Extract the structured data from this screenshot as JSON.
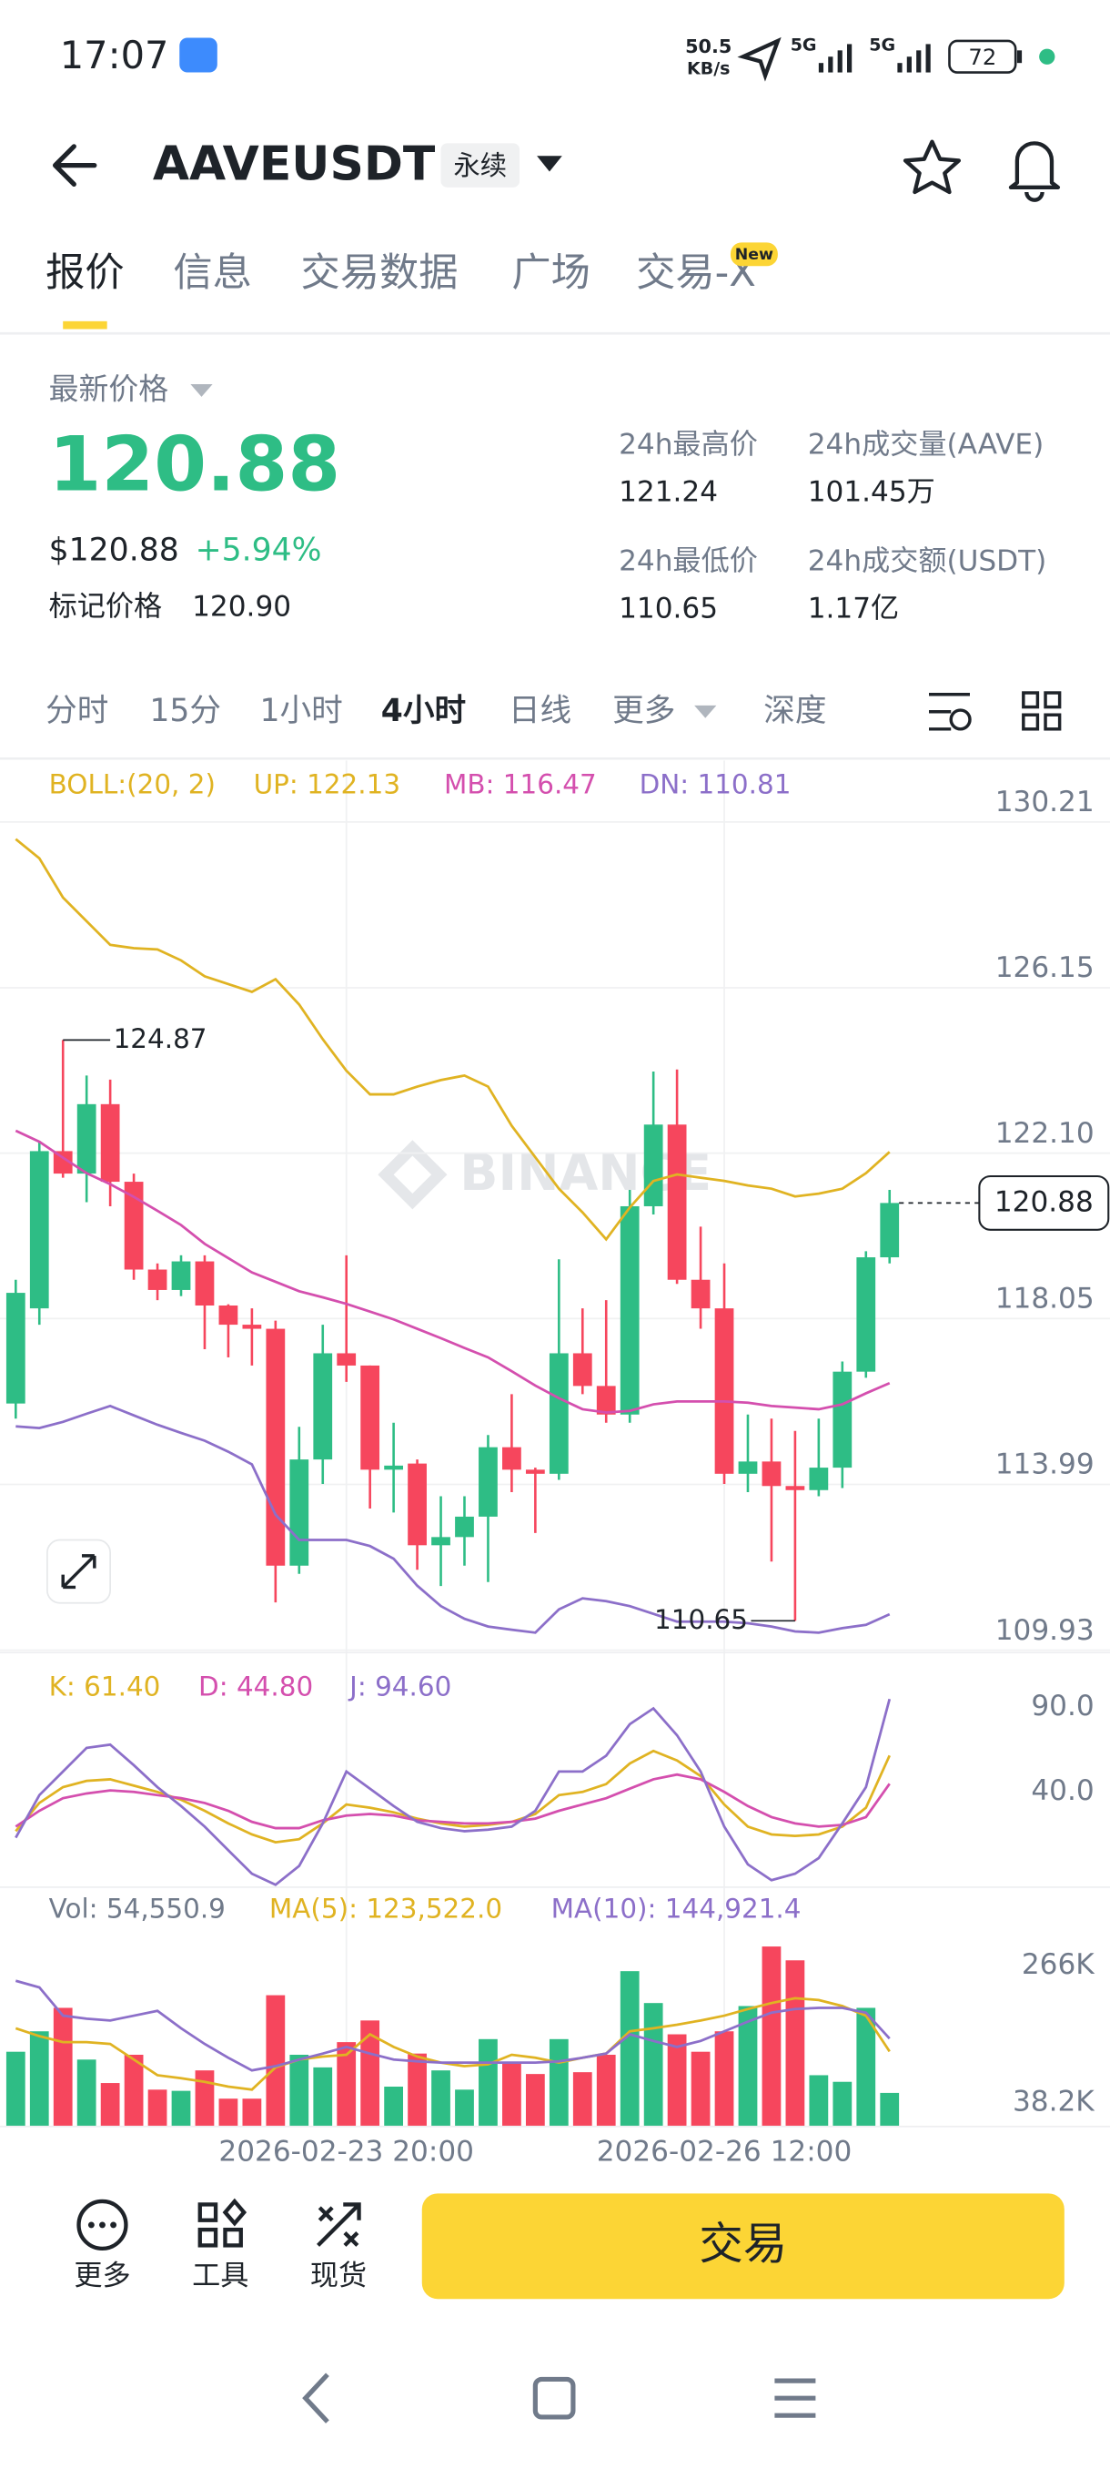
{
  "status_bar": {
    "time": "17:07",
    "net_speed": "50.5",
    "net_unit": "KB/s",
    "signal_1": "5G",
    "signal_2": "5G",
    "battery": "72"
  },
  "header": {
    "symbol": "AAVEUSDT",
    "tag": "永续"
  },
  "tabs": {
    "items": [
      "报价",
      "信息",
      "交易数据",
      "广场",
      "交易-X"
    ],
    "badge": "New"
  },
  "ticker": {
    "label": "最新价格",
    "price": "120.88",
    "usd_price": "$120.88",
    "change": "+5.94%",
    "mark_label": "标记价格",
    "mark_price": "120.90",
    "stats": [
      {
        "label": "24h最高价",
        "value": "121.24"
      },
      {
        "label": "24h成交量(AAVE)",
        "value": "101.45万"
      },
      {
        "label": "24h最低价",
        "value": "110.65"
      },
      {
        "label": "24h成交额(USDT)",
        "value": "1.17亿"
      }
    ]
  },
  "intervals": [
    "分时",
    "15分",
    "1小时",
    "4小时",
    "日线",
    "更多",
    "深度"
  ],
  "watermark": "BINANCE",
  "chart_data": [
    {
      "type": "candlestick",
      "legend": [
        {
          "text": "BOLL:(20, 2)",
          "color": "#e0b322"
        },
        {
          "text": "UP: 122.13",
          "color": "#e0b322"
        },
        {
          "text": "MB: 116.47",
          "color": "#d44fae"
        },
        {
          "text": "DN: 110.81",
          "color": "#8c6fc9"
        }
      ],
      "up_color": "#2ebd85",
      "down_color": "#f6465d",
      "open": [
        115.97,
        118.3,
        122.15,
        121.6,
        123.3,
        121.4,
        119.25,
        118.75,
        119.45,
        118.37,
        117.9,
        117.8,
        112.0,
        114.6,
        117.2,
        116.9,
        114.35,
        114.5,
        112.5,
        112.7,
        113.2,
        114.9,
        114.35,
        114.25,
        117.2,
        116.4,
        115.7,
        120.8,
        122.8,
        119.0,
        118.3,
        114.25,
        114.55,
        113.95,
        113.85,
        114.4,
        116.75,
        119.55
      ],
      "high": [
        119.0,
        122.4,
        124.87,
        124.0,
        123.9,
        121.6,
        119.4,
        119.6,
        119.6,
        118.4,
        118.3,
        118.0,
        115.4,
        117.9,
        119.6,
        116.9,
        115.5,
        114.6,
        113.7,
        113.7,
        115.2,
        116.2,
        114.4,
        119.5,
        118.3,
        118.5,
        121.2,
        124.1,
        124.15,
        120.3,
        119.4,
        115.7,
        115.6,
        115.3,
        115.6,
        117.0,
        119.7,
        121.2
      ],
      "low": [
        115.6,
        117.9,
        121.5,
        120.9,
        120.8,
        119.0,
        118.5,
        118.6,
        117.3,
        117.1,
        116.9,
        111.1,
        111.8,
        114.0,
        116.5,
        113.4,
        113.3,
        111.9,
        111.5,
        112.0,
        111.6,
        113.8,
        112.8,
        114.1,
        116.2,
        115.5,
        115.5,
        120.6,
        118.9,
        117.8,
        114.0,
        113.8,
        112.1,
        110.65,
        113.7,
        113.9,
        116.6,
        119.4
      ],
      "close": [
        118.68,
        122.15,
        121.6,
        123.3,
        121.4,
        119.25,
        118.75,
        119.45,
        118.37,
        117.9,
        117.8,
        112.0,
        114.6,
        117.2,
        116.9,
        114.35,
        114.45,
        112.5,
        112.7,
        113.2,
        114.9,
        114.35,
        114.25,
        117.2,
        116.4,
        115.7,
        120.8,
        122.8,
        119.0,
        118.3,
        114.25,
        114.55,
        113.95,
        113.85,
        114.4,
        116.75,
        119.55,
        120.88
      ],
      "series": [
        {
          "name": "UP",
          "color": "#e0b322",
          "values": [
            129.79,
            129.32,
            128.36,
            127.78,
            127.2,
            127.12,
            127.09,
            126.82,
            126.43,
            126.24,
            126.05,
            126.36,
            125.74,
            124.89,
            124.12,
            123.54,
            123.54,
            123.73,
            123.89,
            124.0,
            123.73,
            122.77,
            122.0,
            121.23,
            120.65,
            119.99,
            120.77,
            121.42,
            121.58,
            121.5,
            121.42,
            121.31,
            121.23,
            121.04,
            121.11,
            121.23,
            121.61,
            122.13
          ]
        },
        {
          "name": "MB",
          "color": "#d44fae",
          "values": [
            122.65,
            122.38,
            121.99,
            121.61,
            121.34,
            121.03,
            120.69,
            120.34,
            119.88,
            119.53,
            119.18,
            118.95,
            118.72,
            118.57,
            118.41,
            118.22,
            118.03,
            117.8,
            117.57,
            117.33,
            117.1,
            116.76,
            116.41,
            116.1,
            115.83,
            115.75,
            115.79,
            115.95,
            116.02,
            116.02,
            116.02,
            115.99,
            115.91,
            115.87,
            115.83,
            115.95,
            116.22,
            116.47
          ]
        },
        {
          "name": "DN",
          "color": "#8c6fc9",
          "values": [
            115.41,
            115.37,
            115.52,
            115.72,
            115.91,
            115.68,
            115.45,
            115.25,
            115.06,
            114.79,
            114.48,
            113.25,
            112.63,
            112.63,
            112.63,
            112.48,
            112.17,
            111.51,
            111.01,
            110.7,
            110.51,
            110.43,
            110.36,
            110.93,
            111.2,
            111.13,
            111.01,
            110.82,
            110.63,
            110.63,
            110.63,
            110.59,
            110.51,
            110.39,
            110.36,
            110.47,
            110.55,
            110.81
          ]
        }
      ],
      "ylim": [
        109.93,
        130.21
      ],
      "yticks": [
        130.21,
        126.15,
        {
          "value": 122.1,
          "label": "122.10"
        },
        118.05,
        113.99,
        109.93
      ],
      "grid": true
    },
    {
      "type": "line",
      "legend": [
        {
          "text": "K: 61.40",
          "color": "#e0b322"
        },
        {
          "text": "D: 44.80",
          "color": "#d44fae"
        },
        {
          "text": "J: 94.60",
          "color": "#8c6fc9"
        }
      ],
      "series": [
        {
          "name": "K",
          "color": "#e0b322",
          "values": [
            16.9,
            33.5,
            42.8,
            46.5,
            47.4,
            43.7,
            40.0,
            35.4,
            28.9,
            21.5,
            15.0,
            10.4,
            12.2,
            21.5,
            32.6,
            30.7,
            28.0,
            24.3,
            21.5,
            19.6,
            20.6,
            22.4,
            27.0,
            38.1,
            40.0,
            44.6,
            56.7,
            64.1,
            58.5,
            49.3,
            32.6,
            19.6,
            15.0,
            14.1,
            15.0,
            19.6,
            30.7,
            61.4
          ]
        },
        {
          "name": "D",
          "color": "#d44fae",
          "values": [
            19.6,
            28.9,
            36.3,
            39.1,
            40.9,
            40.0,
            38.1,
            36.3,
            33.5,
            28.9,
            22.4,
            18.7,
            18.7,
            23.3,
            26.1,
            27.0,
            26.1,
            23.3,
            22.4,
            21.5,
            21.5,
            22.4,
            24.3,
            28.9,
            32.6,
            36.3,
            41.9,
            47.4,
            50.2,
            47.4,
            40.0,
            31.7,
            25.2,
            21.5,
            19.6,
            20.6,
            25.2,
            44.8
          ]
        },
        {
          "name": "J",
          "color": "#8c6fc9",
          "values": [
            13.1,
            38.1,
            52.0,
            65.9,
            67.8,
            55.7,
            42.8,
            31.7,
            19.6,
            5.7,
            -8.1,
            -14.6,
            -3.5,
            21.5,
            52.0,
            41.9,
            31.7,
            22.4,
            18.7,
            16.9,
            17.8,
            19.6,
            28.9,
            52.0,
            52.0,
            61.3,
            79.8,
            89.1,
            73.3,
            52.0,
            19.6,
            -2.6,
            -11.9,
            -8.1,
            1.1,
            21.5,
            42.8,
            94.6
          ]
        }
      ],
      "ylim": [
        -17.4,
        112.2
      ],
      "yticks": [
        {
          "value": 90,
          "label": "90.0"
        },
        {
          "value": 40,
          "label": "40.0"
        }
      ],
      "grid": false
    },
    {
      "type": "bar",
      "legend": [
        {
          "text": "Vol: 54,550.9",
          "color": "#707a8a"
        },
        {
          "text": "MA(5): 123,522.0",
          "color": "#e0b322"
        },
        {
          "text": "MA(10): 144,921.4",
          "color": "#8c6fc9"
        }
      ],
      "categories": [
        null,
        null,
        null,
        null,
        null,
        null,
        null,
        null,
        null,
        null,
        null,
        null,
        null,
        null,
        "2026-02-23 20:00",
        null,
        null,
        null,
        null,
        null,
        null,
        null,
        null,
        null,
        null,
        null,
        null,
        null,
        null,
        null,
        "2026-02-26 12:00",
        null,
        null,
        null,
        null,
        null,
        null,
        null
      ],
      "values": [
        123000,
        157000,
        196000,
        110000,
        71000,
        118000,
        60000,
        58000,
        92000,
        45000,
        45000,
        217000,
        118000,
        97000,
        139000,
        175000,
        65000,
        120000,
        92000,
        60000,
        144000,
        105000,
        86000,
        144000,
        89000,
        118000,
        257000,
        204000,
        152000,
        123000,
        157000,
        199000,
        298000,
        275000,
        84000,
        73000,
        196000,
        54550.9
      ],
      "series": [
        {
          "name": "MA(5)",
          "color": "#e0b322",
          "values": [
            162000,
            149000,
            139000,
            139000,
            136000,
            110000,
            84000,
            79000,
            73000,
            65000,
            60000,
            97000,
            110000,
            115000,
            118000,
            152000,
            131000,
            115000,
            105000,
            99000,
            102000,
            118000,
            113000,
            105000,
            113000,
            120000,
            157000,
            162000,
            168000,
            175000,
            183000,
            194000,
            204000,
            212000,
            209000,
            199000,
            183000,
            123522
          ]
        },
        {
          "name": "MA(10)",
          "color": "#8c6fc9",
          "values": [
            241000,
            230000,
            183000,
            178000,
            175000,
            183000,
            191000,
            162000,
            136000,
            113000,
            92000,
            99000,
            110000,
            120000,
            131000,
            120000,
            110000,
            107000,
            105000,
            105000,
            105000,
            105000,
            105000,
            107000,
            113000,
            120000,
            152000,
            141000,
            131000,
            141000,
            157000,
            173000,
            188000,
            194000,
            196000,
            196000,
            188000,
            144921.4
          ]
        }
      ],
      "ylim": [
        0,
        355000
      ],
      "yticks": [
        {
          "value": 266000,
          "label": "266K"
        },
        {
          "value": 38200,
          "label": "38.2K"
        }
      ],
      "grid": false
    }
  ],
  "bottom_bar": {
    "items": [
      "更多",
      "工具",
      "现货"
    ],
    "button": "交易"
  }
}
